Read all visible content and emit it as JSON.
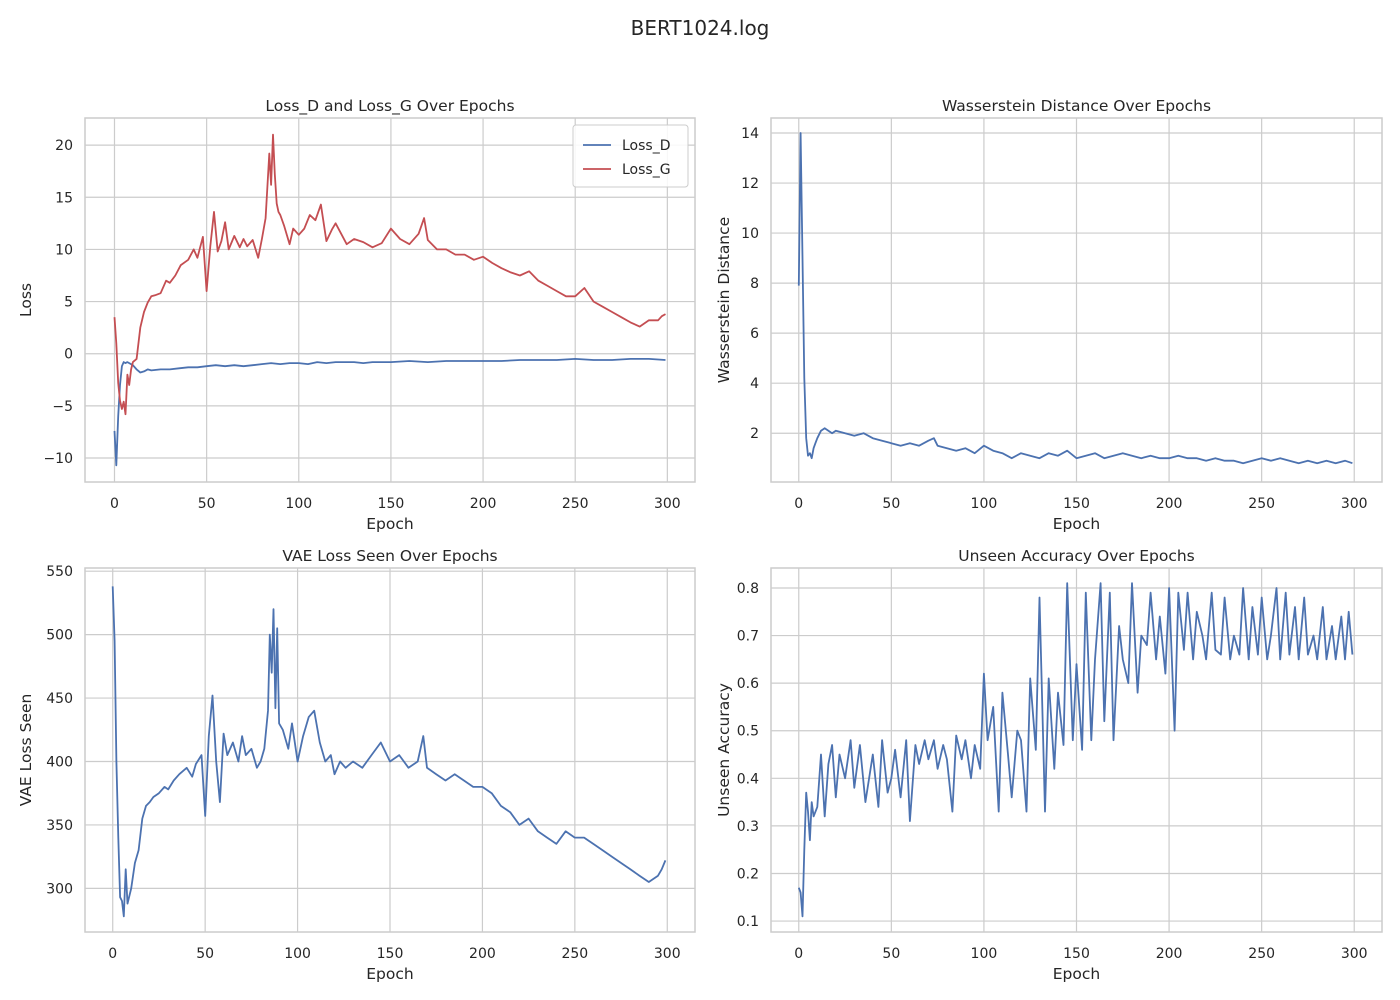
{
  "figure": {
    "suptitle": "BERT1024.log"
  },
  "colors": {
    "blue": "#4c72b0",
    "red": "#c44e52",
    "grid": "#cccccc",
    "frame": "#cccccc"
  },
  "chart_data": [
    {
      "type": "line",
      "title": "Loss_D and Loss_G Over Epochs",
      "xlabel": "Epoch",
      "ylabel": "Loss",
      "xlim": [
        -16,
        315
      ],
      "ylim": [
        -12.3,
        22.6
      ],
      "xticks": [
        0,
        50,
        100,
        150,
        200,
        250,
        300
      ],
      "yticks": [
        -10,
        -5,
        0,
        5,
        10,
        15,
        20
      ],
      "ytick_labels": [
        "−10",
        "−5",
        "0",
        "5",
        "10",
        "15",
        "20"
      ],
      "grid": true,
      "legend": "top-right",
      "series": [
        {
          "name": "Loss_D",
          "color": "#4c72b0",
          "x": [
            0,
            1,
            2,
            3,
            4,
            5,
            6,
            7,
            8,
            10,
            12,
            14,
            16,
            18,
            20,
            25,
            30,
            35,
            40,
            45,
            50,
            55,
            60,
            65,
            70,
            75,
            80,
            85,
            90,
            95,
            100,
            105,
            110,
            115,
            120,
            125,
            130,
            135,
            140,
            145,
            150,
            160,
            170,
            180,
            190,
            200,
            210,
            220,
            230,
            240,
            250,
            260,
            270,
            280,
            290,
            299
          ],
          "y": [
            -7.4,
            -10.7,
            -6,
            -3,
            -1.2,
            -0.8,
            -0.9,
            -0.8,
            -0.9,
            -1.1,
            -1.5,
            -1.8,
            -1.7,
            -1.5,
            -1.6,
            -1.5,
            -1.5,
            -1.4,
            -1.3,
            -1.3,
            -1.2,
            -1.1,
            -1.2,
            -1.1,
            -1.2,
            -1.1,
            -1,
            -0.9,
            -1,
            -0.9,
            -0.9,
            -1,
            -0.8,
            -0.9,
            -0.8,
            -0.8,
            -0.8,
            -0.9,
            -0.8,
            -0.8,
            -0.8,
            -0.7,
            -0.8,
            -0.7,
            -0.7,
            -0.7,
            -0.7,
            -0.6,
            -0.6,
            -0.6,
            -0.5,
            -0.6,
            -0.6,
            -0.5,
            -0.5,
            -0.6
          ]
        },
        {
          "name": "Loss_G",
          "color": "#c44e52",
          "x": [
            0,
            1,
            2,
            3,
            4,
            5,
            6,
            7,
            8,
            9,
            10,
            12,
            14,
            16,
            18,
            20,
            22,
            25,
            28,
            30,
            33,
            36,
            40,
            43,
            45,
            48,
            50,
            52,
            54,
            56,
            58,
            60,
            62,
            65,
            68,
            70,
            72,
            75,
            78,
            80,
            82,
            84,
            85,
            86,
            87,
            88,
            89,
            90,
            92,
            95,
            97,
            100,
            103,
            106,
            109,
            112,
            115,
            118,
            120,
            123,
            126,
            130,
            135,
            140,
            145,
            150,
            155,
            160,
            165,
            168,
            170,
            175,
            180,
            185,
            190,
            195,
            200,
            205,
            210,
            215,
            220,
            225,
            230,
            235,
            240,
            245,
            250,
            255,
            260,
            265,
            270,
            275,
            280,
            285,
            290,
            295,
            297,
            299
          ],
          "y": [
            3.5,
            1,
            -2.8,
            -4.5,
            -5.3,
            -4.6,
            -5.8,
            -2,
            -3,
            -1.5,
            -0.8,
            -0.5,
            2.5,
            4,
            4.9,
            5.5,
            5.6,
            5.8,
            7,
            6.8,
            7.5,
            8.5,
            9,
            10,
            9.2,
            11.2,
            6,
            10.3,
            13.6,
            9.8,
            10.8,
            12.6,
            10,
            11.3,
            10.2,
            11,
            10.3,
            10.9,
            9.2,
            11,
            13,
            19.2,
            16.2,
            21,
            17.2,
            14.4,
            13.6,
            13.3,
            12.3,
            10.5,
            12,
            11.4,
            12,
            13.3,
            12.8,
            14.3,
            10.8,
            11.9,
            12.5,
            11.5,
            10.5,
            11,
            10.7,
            10.2,
            10.6,
            12,
            11,
            10.5,
            11.5,
            13,
            10.9,
            10,
            10,
            9.5,
            9.5,
            9,
            9.3,
            8.7,
            8.2,
            7.8,
            7.5,
            7.9,
            7,
            6.5,
            6,
            5.5,
            5.5,
            6.3,
            5,
            4.5,
            4,
            3.5,
            3,
            2.6,
            3.2,
            3.2,
            3.6,
            3.8
          ]
        }
      ]
    },
    {
      "type": "line",
      "title": "Wasserstein Distance Over Epochs",
      "xlabel": "Epoch",
      "ylabel": "Wasserstein Distance",
      "xlim": [
        -15,
        315
      ],
      "ylim": [
        0.05,
        14.6
      ],
      "xticks": [
        0,
        50,
        100,
        150,
        200,
        250,
        300
      ],
      "yticks": [
        2,
        4,
        6,
        8,
        10,
        12,
        14
      ],
      "ytick_labels": [
        "2",
        "4",
        "6",
        "8",
        "10",
        "12",
        "14"
      ],
      "grid": true,
      "legend": "none",
      "series": [
        {
          "color": "#4c72b0",
          "x": [
            0,
            1,
            2,
            3,
            4,
            5,
            6,
            7,
            8,
            9,
            10,
            12,
            14,
            16,
            18,
            20,
            25,
            30,
            35,
            40,
            45,
            50,
            55,
            60,
            65,
            70,
            73,
            75,
            80,
            85,
            90,
            95,
            100,
            105,
            110,
            115,
            120,
            125,
            130,
            135,
            140,
            145,
            150,
            155,
            160,
            165,
            170,
            175,
            180,
            185,
            190,
            195,
            200,
            205,
            210,
            215,
            220,
            225,
            230,
            235,
            240,
            245,
            250,
            255,
            260,
            265,
            270,
            275,
            280,
            285,
            290,
            295,
            299
          ],
          "y": [
            7.9,
            14,
            9,
            4.2,
            1.8,
            1.1,
            1.2,
            1.0,
            1.4,
            1.6,
            1.8,
            2.1,
            2.2,
            2.1,
            2.0,
            2.1,
            2.0,
            1.9,
            2.0,
            1.8,
            1.7,
            1.6,
            1.5,
            1.6,
            1.5,
            1.7,
            1.8,
            1.5,
            1.4,
            1.3,
            1.4,
            1.2,
            1.5,
            1.3,
            1.2,
            1.0,
            1.2,
            1.1,
            1.0,
            1.2,
            1.1,
            1.3,
            1.0,
            1.1,
            1.2,
            1.0,
            1.1,
            1.2,
            1.1,
            1.0,
            1.1,
            1.0,
            1.0,
            1.1,
            1.0,
            1.0,
            0.9,
            1.0,
            0.9,
            0.9,
            0.8,
            0.9,
            1.0,
            0.9,
            1.0,
            0.9,
            0.8,
            0.9,
            0.8,
            0.9,
            0.8,
            0.9,
            0.8
          ]
        }
      ]
    },
    {
      "type": "line",
      "title": "VAE Loss Seen Over Epochs",
      "xlabel": "Epoch",
      "ylabel": "VAE Loss Seen",
      "xlim": [
        -15,
        315
      ],
      "ylim": [
        265.6,
        552.5
      ],
      "xticks": [
        0,
        50,
        100,
        150,
        200,
        250,
        300
      ],
      "yticks": [
        300,
        350,
        400,
        450,
        500,
        550
      ],
      "ytick_labels": [
        "300",
        "350",
        "400",
        "450",
        "500",
        "550"
      ],
      "grid": true,
      "legend": "none",
      "series": [
        {
          "color": "#4c72b0",
          "x": [
            0,
            1,
            2,
            3,
            4,
            5,
            6,
            7,
            8,
            10,
            12,
            14,
            16,
            18,
            20,
            22,
            25,
            28,
            30,
            33,
            36,
            40,
            43,
            45,
            48,
            50,
            52,
            54,
            56,
            58,
            60,
            62,
            65,
            68,
            70,
            72,
            75,
            78,
            80,
            82,
            84,
            85,
            86,
            87,
            88,
            89,
            90,
            92,
            95,
            97,
            100,
            103,
            106,
            109,
            112,
            115,
            118,
            120,
            123,
            126,
            130,
            135,
            140,
            145,
            150,
            155,
            160,
            165,
            168,
            170,
            175,
            180,
            185,
            190,
            195,
            200,
            205,
            210,
            215,
            220,
            225,
            230,
            235,
            240,
            245,
            250,
            255,
            260,
            265,
            270,
            275,
            280,
            285,
            290,
            295,
            297,
            299
          ],
          "y": [
            538,
            495,
            400,
            340,
            293,
            290,
            278,
            315,
            288,
            300,
            320,
            330,
            355,
            365,
            368,
            372,
            375,
            380,
            378,
            385,
            390,
            395,
            388,
            398,
            405,
            357,
            420,
            452,
            400,
            368,
            422,
            405,
            415,
            400,
            420,
            405,
            410,
            395,
            400,
            410,
            440,
            500,
            470,
            520,
            442,
            505,
            430,
            425,
            410,
            430,
            400,
            420,
            435,
            440,
            415,
            400,
            405,
            390,
            400,
            395,
            400,
            395,
            405,
            415,
            400,
            405,
            395,
            400,
            420,
            395,
            390,
            385,
            390,
            385,
            380,
            380,
            375,
            365,
            360,
            350,
            355,
            345,
            340,
            335,
            345,
            340,
            340,
            335,
            330,
            325,
            320,
            315,
            310,
            305,
            310,
            315,
            322
          ]
        }
      ]
    },
    {
      "type": "line",
      "title": "Unseen Accuracy Over Epochs",
      "xlabel": "Epoch",
      "ylabel": "Unseen Accuracy",
      "xlim": [
        -15,
        315
      ],
      "ylim": [
        0.077,
        0.842
      ],
      "xticks": [
        0,
        50,
        100,
        150,
        200,
        250,
        300
      ],
      "yticks": [
        0.1,
        0.2,
        0.3,
        0.4,
        0.5,
        0.6,
        0.7,
        0.8
      ],
      "ytick_labels": [
        "0.1",
        "0.2",
        "0.3",
        "0.4",
        "0.5",
        "0.6",
        "0.7",
        "0.8"
      ],
      "grid": true,
      "legend": "none",
      "series": [
        {
          "color": "#4c72b0",
          "x": [
            0,
            1,
            2,
            3,
            4,
            5,
            6,
            7,
            8,
            10,
            12,
            14,
            16,
            18,
            20,
            22,
            25,
            28,
            30,
            33,
            36,
            40,
            43,
            45,
            48,
            50,
            52,
            55,
            58,
            60,
            63,
            65,
            68,
            70,
            73,
            75,
            78,
            80,
            83,
            85,
            88,
            90,
            93,
            95,
            98,
            100,
            102,
            105,
            108,
            110,
            113,
            115,
            118,
            120,
            123,
            125,
            128,
            130,
            133,
            135,
            138,
            140,
            143,
            145,
            148,
            150,
            153,
            155,
            158,
            160,
            163,
            165,
            168,
            170,
            173,
            175,
            178,
            180,
            183,
            185,
            188,
            190,
            193,
            195,
            198,
            200,
            203,
            205,
            208,
            210,
            213,
            215,
            218,
            220,
            223,
            225,
            228,
            230,
            233,
            235,
            238,
            240,
            243,
            245,
            248,
            250,
            253,
            255,
            258,
            260,
            263,
            265,
            268,
            270,
            273,
            275,
            278,
            280,
            283,
            285,
            288,
            290,
            293,
            295,
            297,
            299
          ],
          "y": [
            0.17,
            0.16,
            0.11,
            0.25,
            0.37,
            0.33,
            0.27,
            0.35,
            0.32,
            0.34,
            0.45,
            0.32,
            0.43,
            0.47,
            0.36,
            0.45,
            0.4,
            0.48,
            0.38,
            0.47,
            0.35,
            0.45,
            0.34,
            0.48,
            0.37,
            0.4,
            0.46,
            0.36,
            0.48,
            0.31,
            0.47,
            0.43,
            0.48,
            0.44,
            0.48,
            0.42,
            0.47,
            0.44,
            0.33,
            0.49,
            0.44,
            0.48,
            0.4,
            0.47,
            0.42,
            0.62,
            0.48,
            0.55,
            0.33,
            0.58,
            0.45,
            0.36,
            0.5,
            0.48,
            0.33,
            0.61,
            0.46,
            0.78,
            0.33,
            0.61,
            0.42,
            0.58,
            0.47,
            0.81,
            0.48,
            0.64,
            0.46,
            0.79,
            0.48,
            0.65,
            0.81,
            0.52,
            0.79,
            0.48,
            0.72,
            0.65,
            0.6,
            0.81,
            0.58,
            0.7,
            0.68,
            0.79,
            0.65,
            0.74,
            0.62,
            0.8,
            0.5,
            0.79,
            0.67,
            0.79,
            0.65,
            0.75,
            0.7,
            0.65,
            0.79,
            0.67,
            0.66,
            0.78,
            0.65,
            0.7,
            0.66,
            0.8,
            0.65,
            0.76,
            0.66,
            0.78,
            0.65,
            0.7,
            0.8,
            0.65,
            0.79,
            0.66,
            0.76,
            0.65,
            0.78,
            0.66,
            0.7,
            0.65,
            0.76,
            0.65,
            0.72,
            0.65,
            0.74,
            0.65,
            0.75,
            0.66
          ]
        }
      ]
    }
  ]
}
